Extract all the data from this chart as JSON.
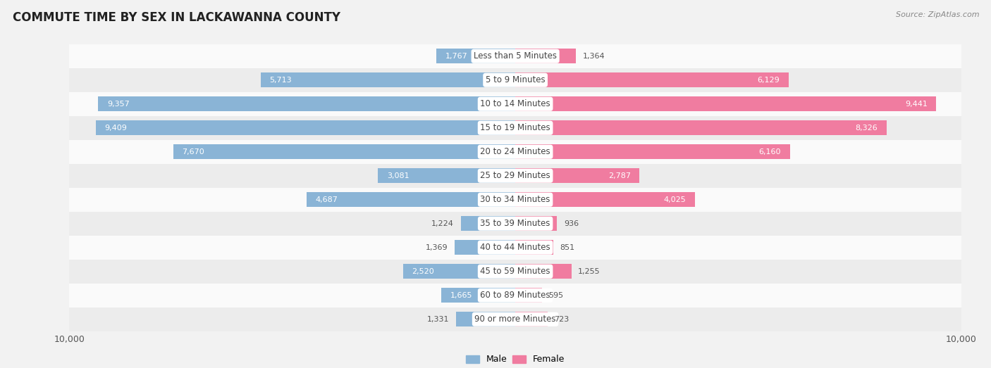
{
  "title": "COMMUTE TIME BY SEX IN LACKAWANNA COUNTY",
  "source": "Source: ZipAtlas.com",
  "categories": [
    "Less than 5 Minutes",
    "5 to 9 Minutes",
    "10 to 14 Minutes",
    "15 to 19 Minutes",
    "20 to 24 Minutes",
    "25 to 29 Minutes",
    "30 to 34 Minutes",
    "35 to 39 Minutes",
    "40 to 44 Minutes",
    "45 to 59 Minutes",
    "60 to 89 Minutes",
    "90 or more Minutes"
  ],
  "male_values": [
    1767,
    5713,
    9357,
    9409,
    7670,
    3081,
    4687,
    1224,
    1369,
    2520,
    1665,
    1331
  ],
  "female_values": [
    1364,
    6129,
    9441,
    8326,
    6160,
    2787,
    4025,
    936,
    851,
    1255,
    595,
    723
  ],
  "male_color": "#8ab4d6",
  "female_color": "#f07ca0",
  "xlim": 10000,
  "bg_color": "#f2f2f2",
  "legend_male": "Male",
  "legend_female": "Female",
  "bar_height": 0.62,
  "row_colors": [
    "#fafafa",
    "#ececec"
  ]
}
